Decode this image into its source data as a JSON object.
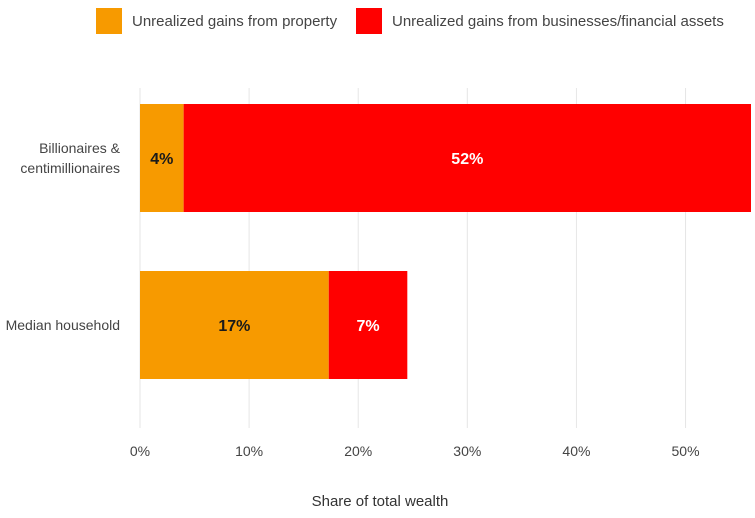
{
  "chart_data": {
    "type": "bar",
    "orientation": "horizontal",
    "stacked": true,
    "categories": [
      "Billionaires & centimillionaires",
      "Median household"
    ],
    "category_lines": [
      [
        "Billionaires &",
        "centimillionaires"
      ],
      [
        "Median household"
      ]
    ],
    "series": [
      {
        "name": "Unrealized gains from property",
        "color": "#f79a00",
        "values": [
          4,
          17.3
        ],
        "labels": [
          "4%",
          "17%"
        ],
        "label_color": "#1a1a1a"
      },
      {
        "name": "Unrealized gains from businesses/financial assets",
        "color": "#ff0000",
        "values": [
          52,
          7.2
        ],
        "labels": [
          "52%",
          "7%"
        ],
        "label_color": "#ffffff"
      }
    ],
    "xlabel": "Share of total wealth",
    "ylabel": "",
    "xlim": [
      0,
      56
    ],
    "xticks": [
      0,
      10,
      20,
      30,
      40,
      50
    ],
    "xtick_labels": [
      "0%",
      "10%",
      "20%",
      "30%",
      "40%",
      "50%"
    ],
    "grid": true,
    "legend_position": "top"
  }
}
